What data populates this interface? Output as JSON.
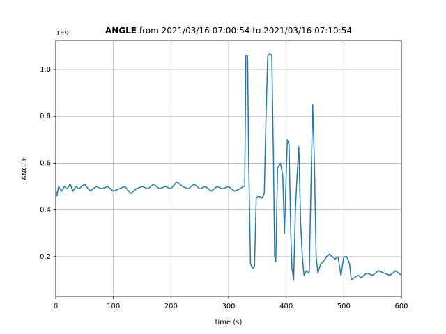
{
  "chart_data": {
    "type": "line",
    "title_name": "ANGLE",
    "title": "from 2021/03/16 07:00:54 to 2021/03/16 07:10:54",
    "offset_text": "1e9",
    "x_label": "time (s)",
    "y_label": "ANGLE",
    "color": "#1f77b4",
    "grid": true,
    "xlim": [
      0,
      600
    ],
    "ylim": [
      0.03,
      1.125
    ],
    "xticks": [
      0,
      100,
      200,
      300,
      400,
      500,
      600
    ],
    "yticks": [
      0.2,
      0.4,
      0.6,
      0.8,
      {
        "value": 1,
        "label": "1.0"
      }
    ],
    "x": [
      0,
      2,
      5,
      10,
      15,
      20,
      25,
      30,
      35,
      40,
      50,
      60,
      70,
      80,
      90,
      100,
      110,
      120,
      130,
      140,
      150,
      160,
      170,
      180,
      190,
      200,
      210,
      220,
      230,
      240,
      250,
      260,
      270,
      280,
      290,
      300,
      310,
      320,
      325,
      328,
      330,
      333,
      335,
      338,
      342,
      345,
      348,
      352,
      358,
      362,
      365,
      368,
      372,
      375,
      378,
      380,
      382,
      385,
      390,
      394,
      397,
      400,
      402,
      405,
      408,
      410,
      413,
      416,
      419,
      422,
      425,
      428,
      431,
      435,
      440,
      443,
      446,
      449,
      452,
      455,
      460,
      465,
      470,
      475,
      480,
      485,
      490,
      495,
      500,
      505,
      510,
      513,
      518,
      525,
      530,
      540,
      550,
      560,
      570,
      580,
      590,
      600
    ],
    "values": [
      0.49,
      0.46,
      0.5,
      0.48,
      0.5,
      0.49,
      0.51,
      0.48,
      0.5,
      0.49,
      0.51,
      0.48,
      0.5,
      0.49,
      0.5,
      0.48,
      0.49,
      0.5,
      0.47,
      0.49,
      0.5,
      0.49,
      0.51,
      0.49,
      0.5,
      0.49,
      0.52,
      0.5,
      0.49,
      0.51,
      0.49,
      0.5,
      0.48,
      0.5,
      0.49,
      0.5,
      0.48,
      0.49,
      0.5,
      0.5,
      1.06,
      1.06,
      0.6,
      0.17,
      0.15,
      0.16,
      0.45,
      0.46,
      0.45,
      0.47,
      0.8,
      1.06,
      1.07,
      1.06,
      0.6,
      0.2,
      0.18,
      0.58,
      0.6,
      0.55,
      0.3,
      0.55,
      0.7,
      0.68,
      0.3,
      0.15,
      0.1,
      0.4,
      0.55,
      0.67,
      0.35,
      0.2,
      0.12,
      0.14,
      0.13,
      0.5,
      0.85,
      0.6,
      0.2,
      0.13,
      0.17,
      0.18,
      0.2,
      0.21,
      0.2,
      0.19,
      0.2,
      0.12,
      0.2,
      0.2,
      0.17,
      0.1,
      0.11,
      0.12,
      0.11,
      0.13,
      0.12,
      0.14,
      0.13,
      0.12,
      0.14,
      0.12
    ]
  }
}
